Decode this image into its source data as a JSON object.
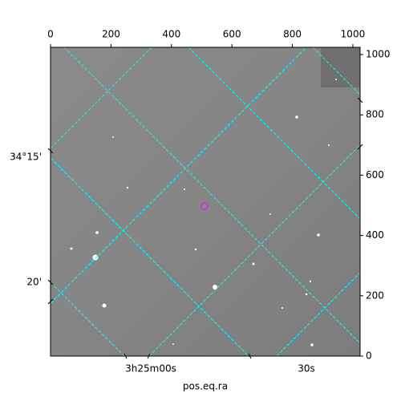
{
  "chart_data": {
    "type": "image",
    "xlabel": "pos.eq.ra",
    "xlim": [
      0,
      1024
    ],
    "ylim": [
      0,
      1024
    ],
    "xticks": [
      0,
      200,
      400,
      600,
      800,
      1000
    ],
    "yticks": [
      0,
      200,
      400,
      600,
      800,
      1000
    ],
    "wcs_y_labels": [
      "34°15'",
      "20'"
    ],
    "wcs_x_labels": [
      "3h25m00s",
      "30s"
    ],
    "marker": {
      "x": [
        509
      ],
      "y": [
        497
      ],
      "color": "#cc33cc"
    },
    "grid_color": "#00ffff"
  }
}
